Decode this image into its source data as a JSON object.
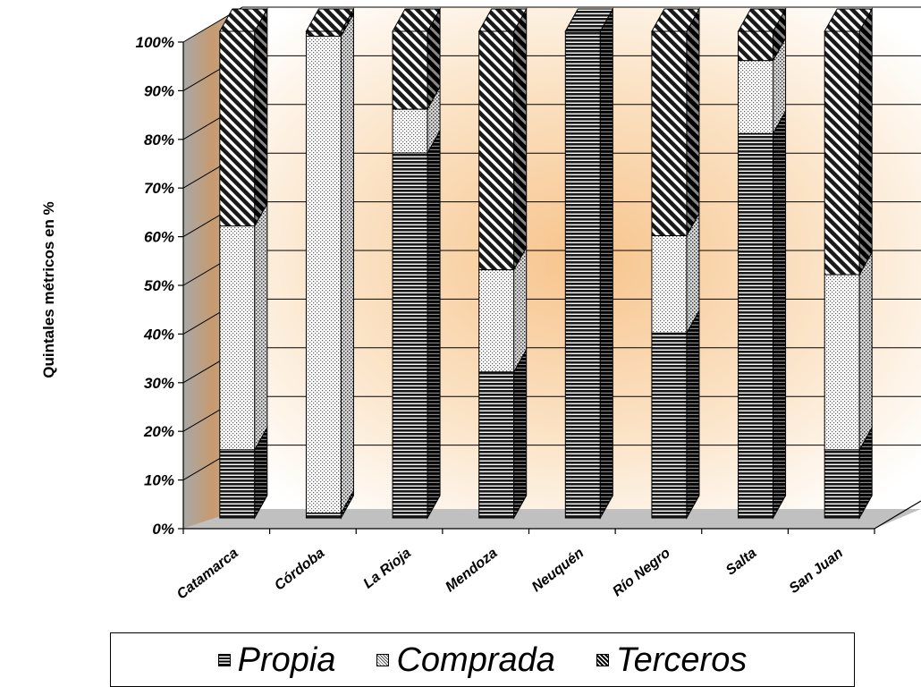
{
  "chart_data": {
    "type": "bar",
    "stacked": true,
    "percent": true,
    "three_d": true,
    "ylabel": "Quintales métricos en %",
    "xlabel": "",
    "ylim": [
      0,
      100
    ],
    "y_ticks": [
      "0%",
      "10%",
      "20%",
      "30%",
      "40%",
      "50%",
      "60%",
      "70%",
      "80%",
      "90%",
      "100%"
    ],
    "categories": [
      "Catamarca",
      "Córdoba",
      "La Rioja",
      "Mendoza",
      "Neuquén",
      "Río Negro",
      "Salta",
      "San Juan"
    ],
    "series": [
      {
        "name": "Propia",
        "pattern": "horizontal-lines",
        "values": [
          14,
          1,
          75,
          30,
          100,
          38,
          79,
          14
        ]
      },
      {
        "name": "Comprada",
        "pattern": "dots",
        "values": [
          46,
          98,
          9,
          21,
          0,
          20,
          15,
          36
        ]
      },
      {
        "name": "Terceros",
        "pattern": "diagonal-lines",
        "values": [
          40,
          1,
          16,
          49,
          0,
          42,
          6,
          50
        ]
      }
    ],
    "legend": {
      "placement": "bottom"
    },
    "grid": true,
    "colors": {
      "wall_glow": "#f7c48c",
      "side_wall": "#c0c0c0",
      "floor": "#c0c0c0",
      "bar_edge": "#000000"
    }
  }
}
